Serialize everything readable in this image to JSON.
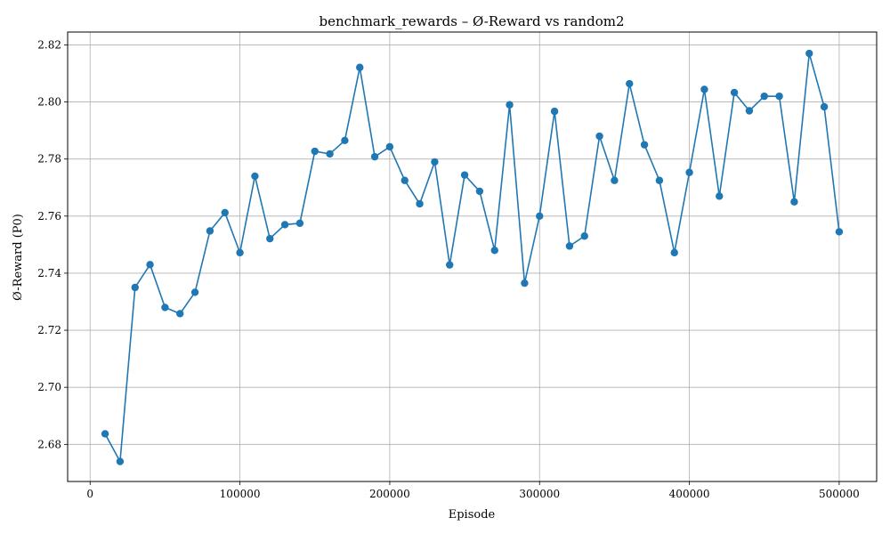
{
  "chart_data": {
    "type": "line",
    "title": "benchmark_rewards – Ø-Reward vs random2",
    "xlabel": "Episode",
    "ylabel": "Ø-Reward (P0)",
    "xlim": [
      -15000,
      525000
    ],
    "ylim": [
      2.667,
      2.8245
    ],
    "xticks": [
      0,
      100000,
      200000,
      300000,
      400000,
      500000
    ],
    "yticks": [
      2.68,
      2.7,
      2.72,
      2.74,
      2.76,
      2.78,
      2.8,
      2.82
    ],
    "ytick_labels": [
      "2.68",
      "2.70",
      "2.72",
      "2.74",
      "2.76",
      "2.78",
      "2.80",
      "2.82"
    ],
    "grid": true,
    "colors": {
      "series": "#1f77b4"
    },
    "x": [
      10000,
      20000,
      30000,
      40000,
      50000,
      60000,
      70000,
      80000,
      90000,
      100000,
      110000,
      120000,
      130000,
      140000,
      150000,
      160000,
      170000,
      180000,
      190000,
      200000,
      210000,
      220000,
      230000,
      240000,
      250000,
      260000,
      270000,
      280000,
      290000,
      300000,
      310000,
      320000,
      330000,
      340000,
      350000,
      360000,
      370000,
      380000,
      390000,
      400000,
      410000,
      420000,
      430000,
      440000,
      450000,
      460000,
      470000,
      480000,
      490000,
      500000
    ],
    "y": [
      2.6837,
      2.674,
      2.735,
      2.743,
      2.728,
      2.7258,
      2.7333,
      2.7548,
      2.7612,
      2.7472,
      2.774,
      2.7521,
      2.757,
      2.7575,
      2.7827,
      2.7818,
      2.7865,
      2.8121,
      2.7808,
      2.7843,
      2.7725,
      2.7643,
      2.779,
      2.7429,
      2.7744,
      2.7687,
      2.748,
      2.799,
      2.7365,
      2.76,
      2.7967,
      2.7495,
      2.753,
      2.788,
      2.7725,
      2.8064,
      2.785,
      2.7725,
      2.7472,
      2.7753,
      2.8044,
      2.767,
      2.8033,
      2.7969,
      2.802,
      2.802,
      2.765,
      2.817,
      2.7983,
      2.7545
    ]
  }
}
